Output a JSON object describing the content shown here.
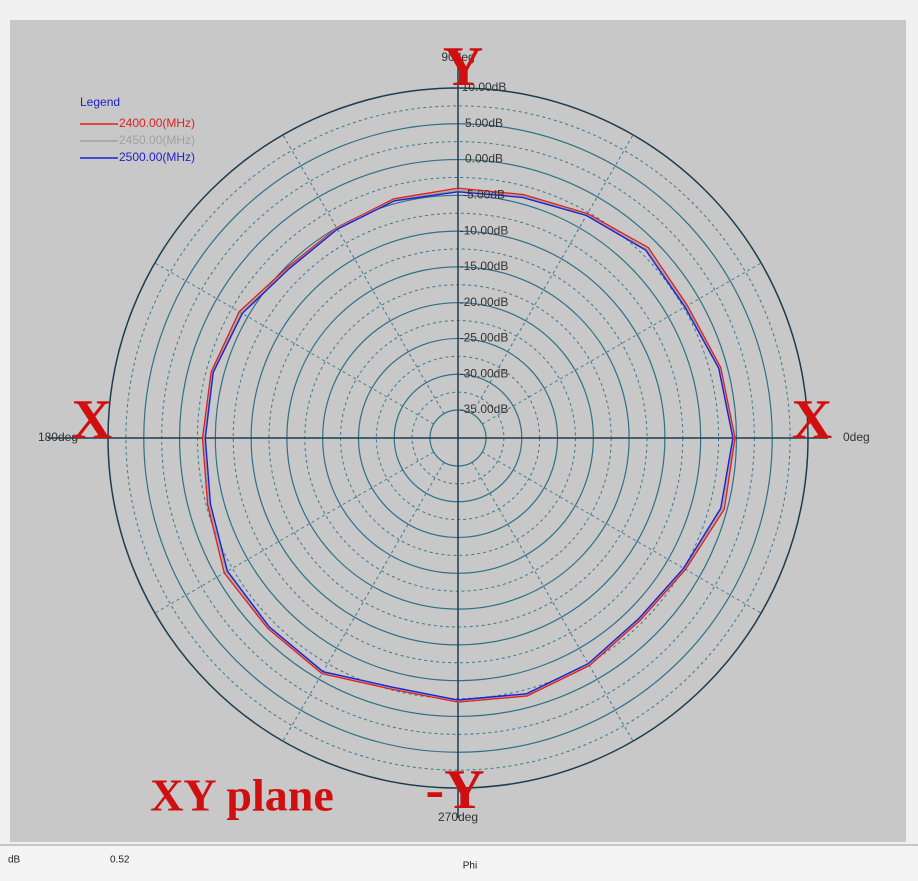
{
  "chart_data": {
    "type": "polar",
    "theta": [
      0,
      15,
      30,
      45,
      60,
      75,
      90,
      105,
      120,
      135,
      150,
      165,
      180,
      195,
      210,
      225,
      240,
      255,
      270,
      285,
      300,
      315,
      330,
      345
    ],
    "series": [
      {
        "name": "2400.00(MHz)",
        "color": "#e02020",
        "values": [
          -0.2,
          -0.9,
          -1.9,
          -1.3,
          -2.7,
          -3.7,
          -4.0,
          -4.3,
          -5.0,
          -5.2,
          -3.6,
          -3.2,
          -3.2,
          -2.7,
          -1.2,
          -1.3,
          -0.9,
          -2.6,
          -2.0,
          -1.6,
          -2.2,
          -2.9,
          -2.2,
          -0.4
        ]
      },
      {
        "name": "2450.00(MHz)",
        "color": "#a0a0a0",
        "values": [
          -0.4,
          -1.1,
          -2.1,
          -1.6,
          -2.9,
          -3.9,
          -4.3,
          -4.5,
          -5.1,
          -5.4,
          -3.9,
          -3.4,
          -3.4,
          -2.9,
          -1.5,
          -1.5,
          -1.1,
          -2.8,
          -2.2,
          -1.8,
          -2.4,
          -3.1,
          -2.4,
          -0.7
        ]
      },
      {
        "name": "2500.00(MHz)",
        "color": "#2020d0",
        "values": [
          -0.5,
          -1.2,
          -2.3,
          -1.8,
          -3.0,
          -4.1,
          -4.5,
          -4.6,
          -5.2,
          -5.5,
          -4.1,
          -3.5,
          -3.6,
          -3.1,
          -1.7,
          -1.6,
          -1.2,
          -2.9,
          -2.3,
          -1.9,
          -2.5,
          -3.2,
          -2.5,
          -0.9
        ]
      }
    ],
    "legend_title": "Legend",
    "rlim": [
      -35,
      10
    ],
    "rticks": [
      {
        "value": 10,
        "label": "10.00dB"
      },
      {
        "value": 5,
        "label": "5.00dB"
      },
      {
        "value": 0,
        "label": "0.00dB"
      },
      {
        "value": -5,
        "label": "-5.00dB"
      },
      {
        "value": -10,
        "label": "-10.00dB"
      },
      {
        "value": -15,
        "label": "-15.00dB"
      },
      {
        "value": -20,
        "label": "-20.00dB"
      },
      {
        "value": -25,
        "label": "-25.00dB"
      },
      {
        "value": -30,
        "label": "-30.00dB"
      },
      {
        "value": -35,
        "label": "-35.00dB"
      }
    ],
    "thetaticks": [
      {
        "value": 0,
        "label": "0deg"
      },
      {
        "value": 90,
        "label": "90deg"
      },
      {
        "value": 180,
        "label": "180deg"
      },
      {
        "value": 270,
        "label": "270deg"
      }
    ],
    "annotations": {
      "x_right": "X",
      "x_left": "X",
      "y_top": "Y",
      "y_bottom": "-Y",
      "plane": "XY plane"
    },
    "status_bar": {
      "unit": "dB",
      "value": "0.52",
      "axis": "Phi"
    }
  }
}
